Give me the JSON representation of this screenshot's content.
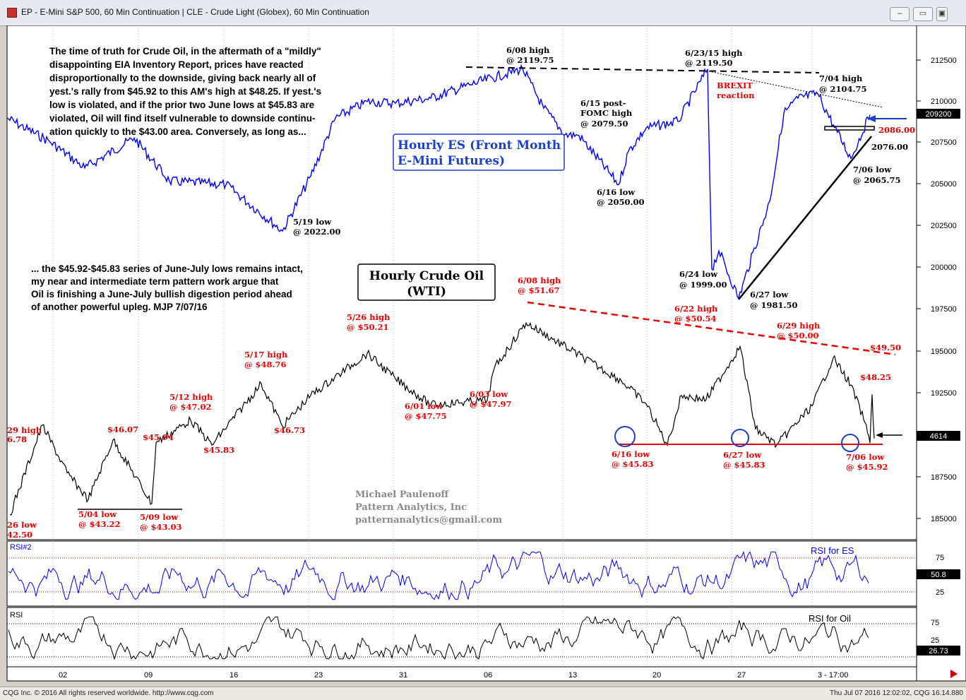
{
  "window": {
    "title": "EP - E-Mini S&P 500, 60 Min Continuation   |   CLE - Crude Light (Globex), 60 Min Continuation",
    "buttons": [
      "–",
      "▭",
      "▣",
      "✕"
    ]
  },
  "chart_data": {
    "type": "line",
    "price_axis": {
      "ticks": [
        "212500",
        "210000",
        "207500",
        "205000",
        "202500",
        "200000",
        "197500",
        "195000",
        "192500",
        "187500",
        "185000"
      ],
      "last_es": "209200",
      "last_oil": "4614"
    },
    "x_ticks": [
      "02",
      "09",
      "16",
      "23",
      "31",
      "06",
      "13",
      "20",
      "27",
      "3 - 17:00"
    ],
    "series": [
      {
        "name": "Hourly ES (Front Month E-Mini Futures)",
        "color": "#0000ff",
        "points": [
          [
            "4/28",
            2090
          ],
          [
            "5/02",
            2076
          ],
          [
            "5/05",
            2060
          ],
          [
            "5/10",
            2078
          ],
          [
            "5/13",
            2052
          ],
          [
            "5/17",
            2050
          ],
          [
            "5/19",
            2022
          ],
          [
            "5/22",
            2055
          ],
          [
            "5/25",
            2090
          ],
          [
            "5/27",
            2100
          ],
          [
            "5/31",
            2099
          ],
          [
            "6/03",
            2102
          ],
          [
            "6/06",
            2110
          ],
          [
            "6/08",
            2119.75
          ],
          [
            "6/10",
            2096
          ],
          [
            "6/13",
            2080
          ],
          [
            "6/15",
            2079.5
          ],
          [
            "6/16",
            2050
          ],
          [
            "6/17",
            2070
          ],
          [
            "6/20",
            2084
          ],
          [
            "6/22",
            2088
          ],
          [
            "6/23",
            2119.5
          ],
          [
            "6/24",
            1999
          ],
          [
            "6/25",
            2010
          ],
          [
            "6/27",
            1981.5
          ],
          [
            "6/29",
            2040
          ],
          [
            "6/30",
            2093
          ],
          [
            "7/01",
            2102
          ],
          [
            "7/04",
            2104.75
          ],
          [
            "7/05",
            2086
          ],
          [
            "7/06",
            2065.75
          ],
          [
            "7/07",
            2092
          ]
        ]
      },
      {
        "name": "Hourly Crude Oil (WTI)",
        "color": "#000000",
        "points": [
          [
            "4/26",
            42.5
          ],
          [
            "4/29",
            46.78
          ],
          [
            "5/02",
            44.5
          ],
          [
            "5/04",
            43.22
          ],
          [
            "5/06",
            46.07
          ],
          [
            "5/09",
            43.03
          ],
          [
            "5/10",
            45.94
          ],
          [
            "5/12",
            47.02
          ],
          [
            "5/13",
            45.83
          ],
          [
            "5/17",
            48.76
          ],
          [
            "5/20",
            46.73
          ],
          [
            "5/23",
            48.2
          ],
          [
            "5/26",
            50.21
          ],
          [
            "5/30",
            49.0
          ],
          [
            "6/01",
            47.75
          ],
          [
            "6/03",
            47.97
          ],
          [
            "6/06",
            49.5
          ],
          [
            "6/08",
            51.67
          ],
          [
            "6/10",
            48.9
          ],
          [
            "6/13",
            47.8
          ],
          [
            "6/16",
            45.83
          ],
          [
            "6/19",
            48.2
          ],
          [
            "6/21",
            48.0
          ],
          [
            "6/22",
            50.54
          ],
          [
            "6/24",
            46.6
          ],
          [
            "6/27",
            45.83
          ],
          [
            "6/28",
            47.7
          ],
          [
            "6/29",
            50.0
          ],
          [
            "7/01",
            48.7
          ],
          [
            "7/05",
            46.9
          ],
          [
            "7/06",
            45.92
          ],
          [
            "7/07",
            48.25
          ],
          [
            "7/07 12:00",
            46.14
          ]
        ]
      },
      {
        "name": "RSI for ES",
        "color": "#0000ff"
      },
      {
        "name": "RSI for Oil",
        "color": "#000000"
      }
    ],
    "indicators": {
      "rsi1": {
        "label": "RSI#2",
        "series_label": "RSI for ES",
        "levels": [
          "75",
          "25"
        ],
        "last": "50.8"
      },
      "rsi2": {
        "label": "RSI",
        "series_label": "RSI for Oil",
        "levels": [
          "75",
          "25"
        ],
        "last": "26.73"
      }
    },
    "commentary": {
      "top": [
        "The time of truth for Crude Oil, in the aftermath of a \"mildly\"",
        "disappointing EIA Inventory Report, prices have reacted",
        "disproportionally to the downside, giving back nearly all of",
        "yest.'s rally from $45.92 to this AM's high at $48.25. If yest.'s",
        "low is violated, and if the prior two June lows at $45.83 are",
        "violated, Oil will find itself vulnerable to downside continu-",
        "ation quickly to the $43.00 area. Conversely, as long as..."
      ],
      "bottom": [
        "... the $45.92-$45.83 series of June-July lows remains intact,",
        "my near and intermediate term pattern work argue that",
        "Oil is finishing a June-July bullish digestion period ahead",
        "of another powerful upleg. MJP  7/07/16"
      ]
    },
    "boxes": {
      "es": [
        "Hourly ES (Front Month",
        "E-Mini Futures)"
      ],
      "oil": [
        "Hourly Crude Oil",
        "(WTI)"
      ]
    },
    "signature": [
      "Michael Paulenoff",
      "Pattern Analytics, Inc",
      "patternanalytics@gmail.com"
    ],
    "es_annotations": [
      [
        "6/08 high",
        "@ 2119.75"
      ],
      [
        "6/23/15 high",
        "@ 2119.50"
      ],
      [
        "7/04 high",
        "@ 2104.75"
      ],
      [
        "6/15 post-",
        "FOMC high",
        "@ 2079.50"
      ],
      [
        "6/16 low",
        "@ 2050.00"
      ],
      [
        "5/19 low",
        "@ 2022.00"
      ],
      [
        "6/24 low",
        "@ 1999.00"
      ],
      [
        "6/27 low",
        "@ 1981.50"
      ],
      [
        "7/06 low",
        "@ 2065.75"
      ],
      [
        "BREXIT",
        "reaction"
      ],
      [
        "2086.00"
      ],
      [
        "2076.00"
      ]
    ],
    "oil_annotations": [
      [
        "6/08 high",
        "@ $51.67"
      ],
      [
        "5/26 high",
        "@ $50.21"
      ],
      [
        "6/22 high",
        "@ $50.54"
      ],
      [
        "6/29 high",
        "@ $50.00"
      ],
      [
        "5/17 high",
        "@ $48.76"
      ],
      [
        "5/12 high",
        "@ $47.02"
      ],
      [
        "$46.07"
      ],
      [
        "$45.94"
      ],
      [
        "$45.83"
      ],
      [
        "$46.73"
      ],
      [
        "$49.50"
      ],
      [
        "$48.25"
      ],
      [
        "6/01 low",
        "@ $47.75"
      ],
      [
        "6/03 low",
        "@ $47.97"
      ],
      [
        "5/04 low",
        "@ $43.22"
      ],
      [
        "5/09 low",
        "@ $43.03"
      ],
      [
        "6/16 low",
        "@ $45.83"
      ],
      [
        "6/27 low",
        "@ $45.83"
      ],
      [
        "7/06 low",
        "@ $45.92"
      ],
      [
        "29 high",
        "6.78"
      ],
      [
        "26 low",
        "42.50"
      ]
    ]
  },
  "footer": {
    "left": "CQG Inc. © 2016 All rights reserved worldwide. http://www.cqg.com",
    "right": "Thu Jul 07 2016 12:02:02, CQG 16.14.880"
  }
}
